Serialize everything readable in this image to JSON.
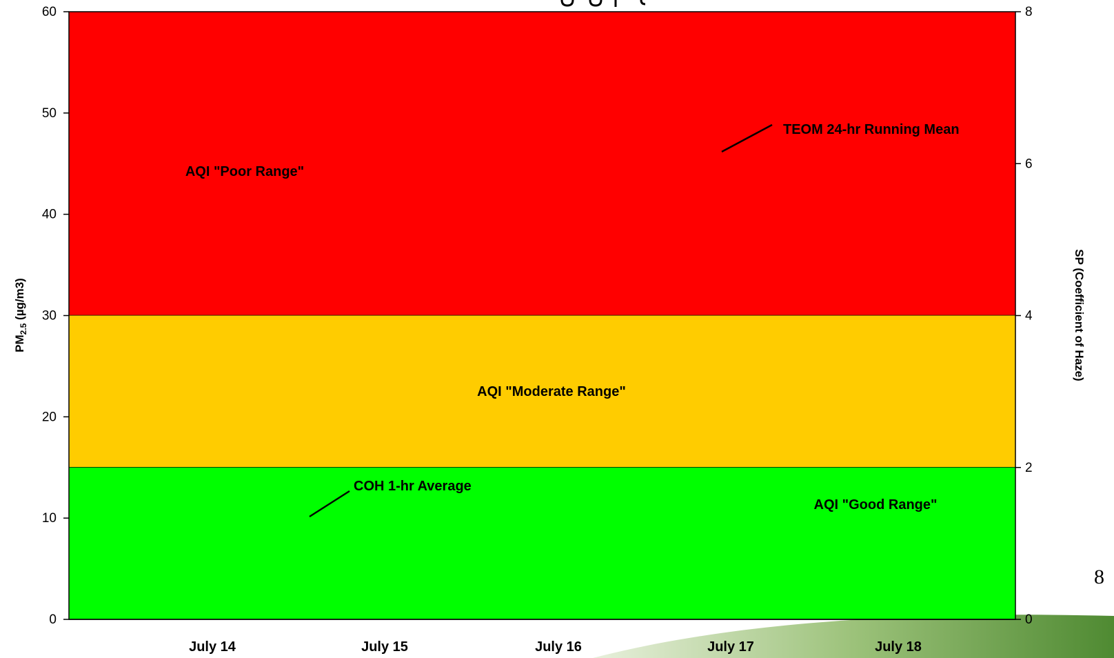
{
  "slide": {
    "page_number": "8"
  },
  "colors": {
    "poor": "#ff0000",
    "moderate": "#ffcc00",
    "good": "#00ff00",
    "swoosh_light": "#cfe3b4",
    "swoosh_dark": "#5a8a3a"
  },
  "chart_data": {
    "type": "area",
    "title": "",
    "categories": [
      "July 14",
      "July 15",
      "July 16",
      "July 17",
      "July 18"
    ],
    "y_left": {
      "label_main": "PM",
      "label_sub": "2.5",
      "label_unit": " (µg/m3)",
      "min": 0,
      "max": 60,
      "ticks": [
        0,
        10,
        20,
        30,
        40,
        50,
        60
      ]
    },
    "y_right": {
      "label": "SP (Coefficient of Haze)",
      "min": 0,
      "max": 8,
      "ticks": [
        0,
        2,
        4,
        6,
        8
      ]
    },
    "bands": [
      {
        "name": "AQI \"Poor Range\"",
        "from": 30,
        "to": 60,
        "color": "#ff0000"
      },
      {
        "name": "AQI \"Moderate Range\"",
        "from": 15,
        "to": 30,
        "color": "#ffcc00"
      },
      {
        "name": "AQI \"Good Range\"",
        "from": 0,
        "to": 15,
        "color": "#00ff00"
      }
    ],
    "annotations": [
      {
        "text": "AQI \"Poor Range\""
      },
      {
        "text": "AQI \"Moderate Range\""
      },
      {
        "text": "AQI \"Good Range\""
      },
      {
        "text": "TEOM 24-hr Running Mean"
      },
      {
        "text": "COH 1-hr Average"
      }
    ],
    "grid": false,
    "legend": "none"
  }
}
